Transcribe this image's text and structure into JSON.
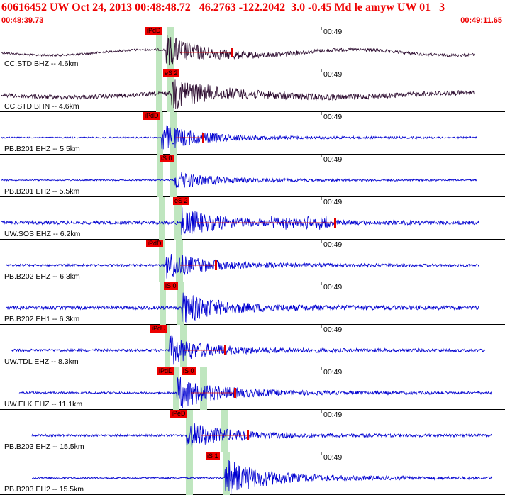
{
  "header": {
    "title": "60616452 UW Oct 24, 2013 00:48:48.72   46.2763 -122.2042  3.0 -0.45 Md le amyw UW 01   3",
    "time_start": "00:48:39.73",
    "time_end": "00:49:11.65"
  },
  "tick_label": "00:49",
  "colors": {
    "pick": "#e00000",
    "highlight": "#bfe6bf",
    "trace_black": "#2b0a2e",
    "trace_blue": "#0000d0",
    "text_red": "#e00000"
  },
  "traces": [
    {
      "label": "CC.STD BHZ -- 4.6km",
      "color": "black",
      "pick": "iPdD",
      "start": 0.0,
      "end": 0.94,
      "onset": 0.328,
      "amp": 0.55,
      "noise": 0.05,
      "has_tail": true
    },
    {
      "label": "CC.STD BHN -- 4.6km",
      "color": "black",
      "pick": "eS 2",
      "start": 0.0,
      "end": 0.94,
      "onset": 0.34,
      "amp": 0.55,
      "noise": 0.1,
      "has_tail": false
    },
    {
      "label": "PB.B201 EHZ -- 5.5km",
      "color": "blue",
      "pick": "iPdD",
      "start": 0.0,
      "end": 0.945,
      "onset": 0.32,
      "amp": 0.5,
      "noise": 0.03,
      "has_tail": true
    },
    {
      "label": "PB.B201 EH2 -- 5.5km",
      "color": "blue",
      "pick": "iS 0",
      "start": 0.0,
      "end": 0.945,
      "onset": 0.345,
      "amp": 0.35,
      "noise": 0.03,
      "has_tail": false
    },
    {
      "label": "UW.SOS EHZ -- 6.2km",
      "color": "blue",
      "pick": "eS 2",
      "start": 0.0,
      "end": 0.95,
      "onset": 0.36,
      "amp": 0.5,
      "noise": 0.08,
      "has_tail": true
    },
    {
      "label": "PB.B202 EHZ -- 6.3km",
      "color": "blue",
      "pick": "iPdD",
      "start": 0.01,
      "end": 0.95,
      "onset": 0.328,
      "amp": 0.5,
      "noise": 0.05,
      "has_tail": true
    },
    {
      "label": "PB.B202 EH1 -- 6.3km",
      "color": "blue",
      "pick": "iS 0",
      "start": 0.01,
      "end": 0.95,
      "onset": 0.36,
      "amp": 0.55,
      "noise": 0.08,
      "has_tail": false
    },
    {
      "label": "UW.TDL EHZ -- 8.3km",
      "color": "blue",
      "pick": "iPdU",
      "start": 0.02,
      "end": 0.96,
      "onset": 0.335,
      "amp": 0.5,
      "noise": 0.06,
      "has_tail": true
    },
    {
      "label": "UW.ELK EHZ -- 11.1km",
      "color": "blue",
      "pick": "iPdD",
      "pick2": "iS 0",
      "start": 0.035,
      "end": 0.975,
      "onset": 0.35,
      "amp": 0.6,
      "noise": 0.05,
      "has_tail": true
    },
    {
      "label": "PB.B203 EHZ -- 15.5km",
      "color": "blue",
      "pick": "iPeD",
      "start": 0.06,
      "end": 0.975,
      "onset": 0.37,
      "amp": 0.5,
      "noise": 0.05,
      "has_tail": true
    },
    {
      "label": "PB.B203 EH2 -- 15.5km",
      "color": "blue",
      "pick": "iS 1",
      "start": 0.06,
      "end": 0.975,
      "onset": 0.445,
      "amp": 0.7,
      "noise": 0.04,
      "has_tail": false
    }
  ]
}
